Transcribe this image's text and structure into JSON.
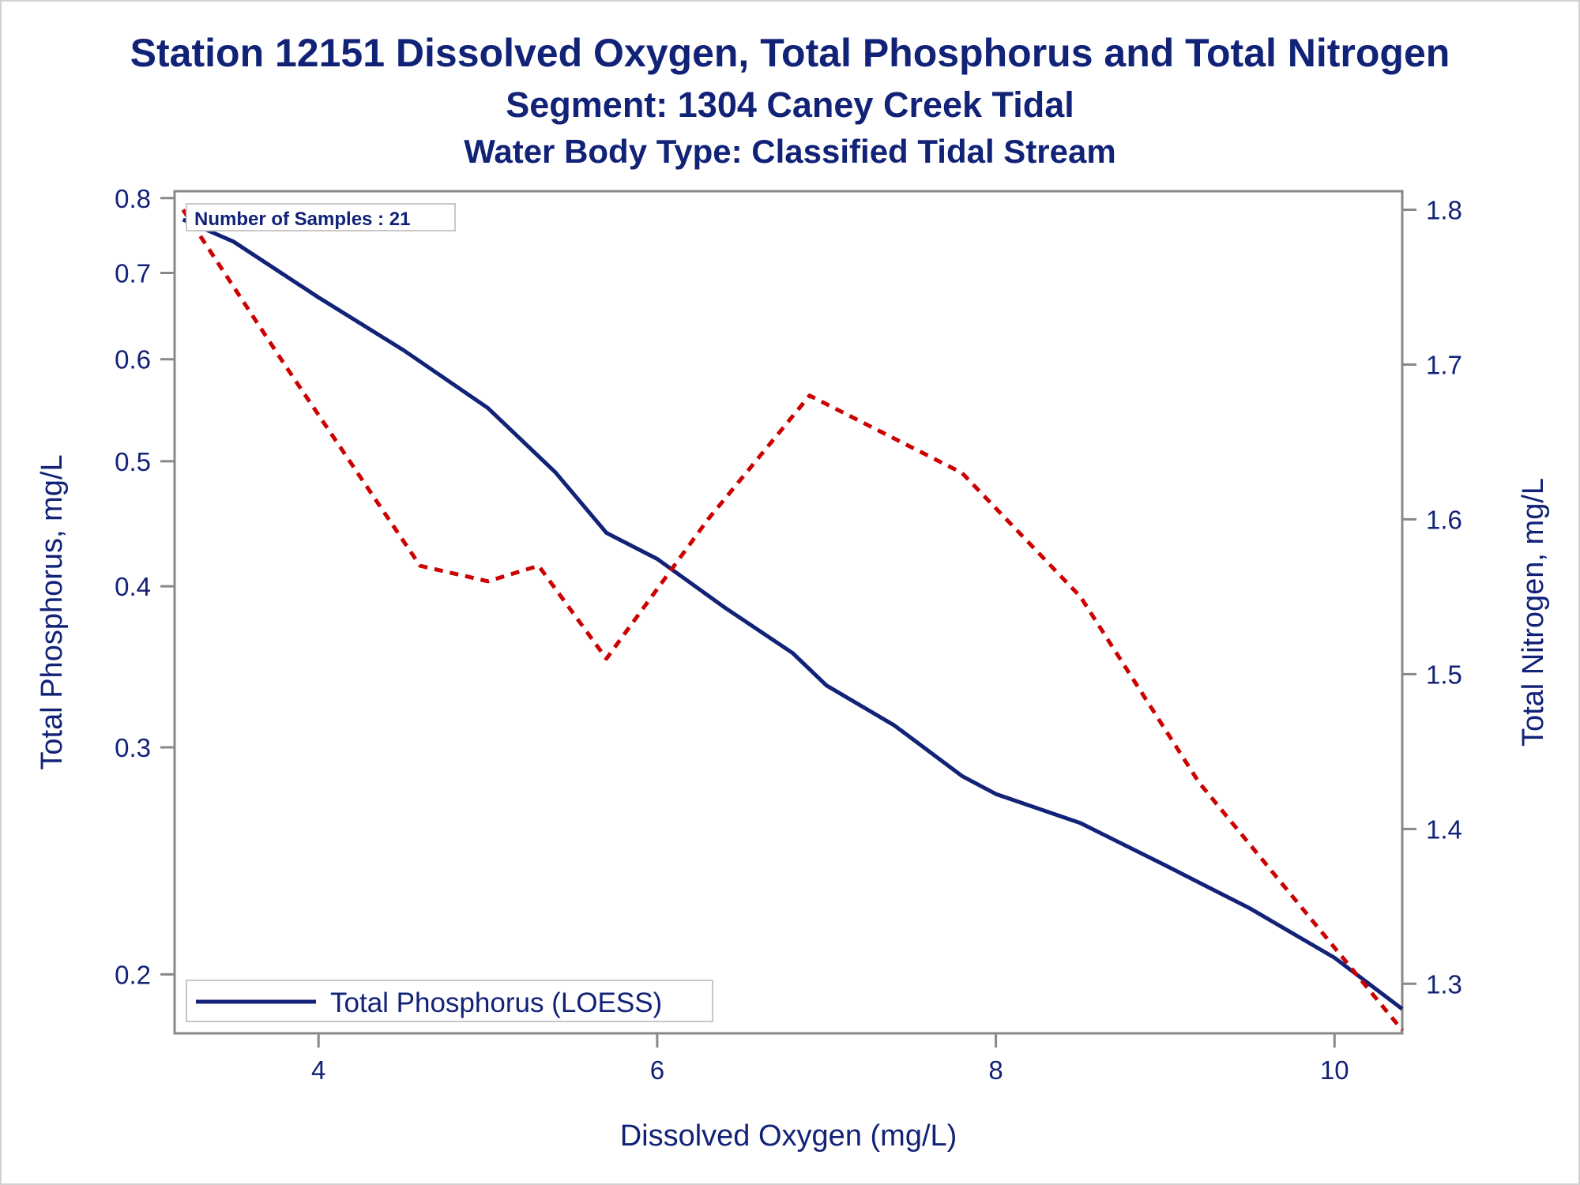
{
  "titles": {
    "line1": "Station 12151  Dissolved Oxygen, Total Phosphorus and Total Nitrogen",
    "line2": "Segment: 1304  Caney Creek Tidal",
    "line3": "Water Body Type: Classified Tidal Stream"
  },
  "colors": {
    "text": "#112277",
    "phosphorus_line": "#112277",
    "nitrogen_line": "#cc0000",
    "axis": "#888888"
  },
  "chart_data": {
    "type": "line",
    "xlabel": "Dissolved Oxygen (mg/L)",
    "ylabel_left": "Total Phosphorus, mg/L",
    "ylabel_right": "Total Nitrogen, mg/L",
    "xlim": [
      3.15,
      10.4
    ],
    "x_ticks": [
      4,
      6,
      8,
      10
    ],
    "ylim_left": [
      0.18,
      0.81
    ],
    "y_scale_left": "log",
    "y_ticks_left": [
      0.2,
      0.3,
      0.4,
      0.5,
      0.6,
      0.7,
      0.8
    ],
    "ylim_right": [
      1.268,
      1.812
    ],
    "y_ticks_right": [
      1.3,
      1.4,
      1.5,
      1.6,
      1.7,
      1.8
    ],
    "annotation": "Number of Samples : 21",
    "legend": {
      "position": "bottom-left",
      "entries": [
        "Total Phosphorus (LOESS)"
      ]
    },
    "series": [
      {
        "name": "Total Phosphorus (LOESS)",
        "axis": "left",
        "style": "solid",
        "x": [
          3.2,
          3.5,
          4.0,
          4.5,
          5.0,
          5.4,
          5.7,
          6.0,
          6.4,
          6.8,
          7.0,
          7.4,
          7.8,
          8.0,
          8.5,
          9.0,
          9.5,
          10.0,
          10.4
        ],
        "y": [
          0.77,
          0.74,
          0.67,
          0.61,
          0.55,
          0.49,
          0.44,
          0.42,
          0.385,
          0.355,
          0.335,
          0.312,
          0.285,
          0.276,
          0.262,
          0.243,
          0.225,
          0.206,
          0.188
        ]
      },
      {
        "name": "Total Nitrogen",
        "axis": "right",
        "style": "dashed",
        "x": [
          3.2,
          3.8,
          4.6,
          5.0,
          5.3,
          5.7,
          6.3,
          6.9,
          7.8,
          8.5,
          9.2,
          9.8,
          10.4
        ],
        "y": [
          1.8,
          1.7,
          1.57,
          1.56,
          1.57,
          1.51,
          1.6,
          1.68,
          1.63,
          1.55,
          1.43,
          1.35,
          1.27
        ]
      }
    ]
  }
}
